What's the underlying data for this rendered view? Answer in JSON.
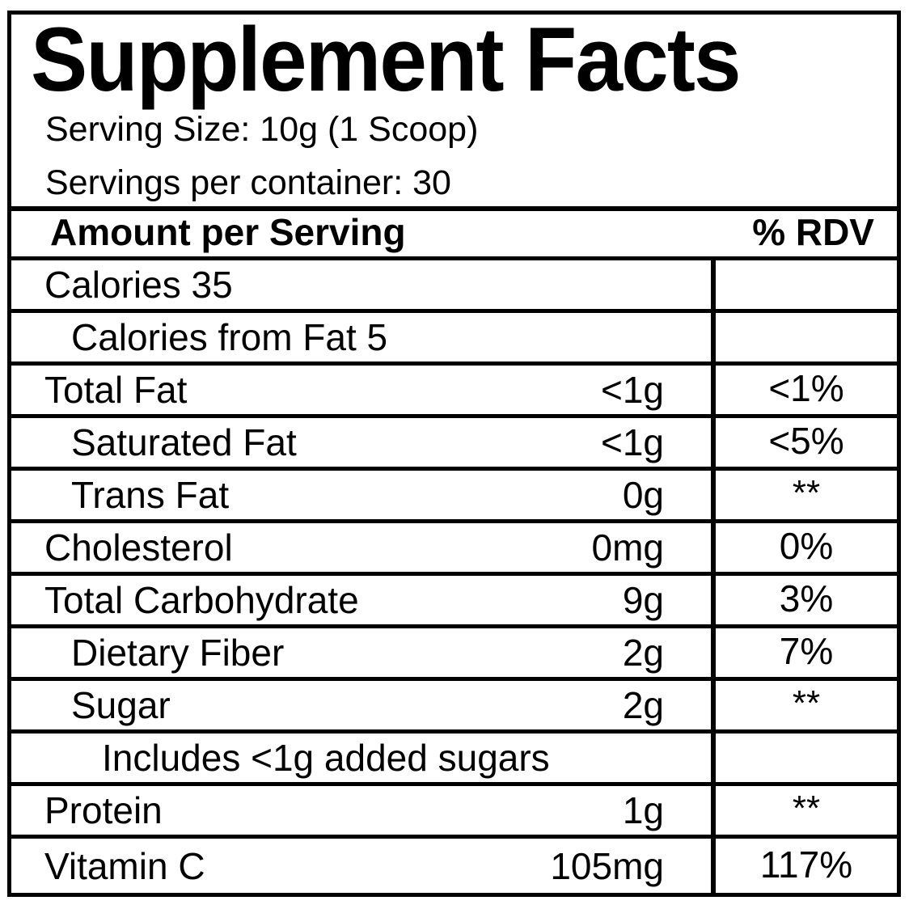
{
  "label": {
    "title": "Supplement Facts",
    "serving_size": "Serving Size: 10g (1 Scoop)",
    "servings_per_container": "Servings per container: 30",
    "colors": {
      "text": "#000000",
      "background": "#ffffff",
      "border": "#000000"
    }
  },
  "table": {
    "header": {
      "amount": "Amount per Serving",
      "rdv": "% RDV"
    },
    "rows": [
      {
        "name": "Calories 35",
        "amount": "",
        "rdv": "",
        "indent": 0
      },
      {
        "name": "Calories from Fat 5",
        "amount": "",
        "rdv": "",
        "indent": 1
      },
      {
        "name": "Total Fat",
        "amount": "<1g",
        "rdv": "<1%",
        "indent": 0
      },
      {
        "name": "Saturated Fat",
        "amount": "<1g",
        "rdv": "<5%",
        "indent": 1
      },
      {
        "name": "Trans Fat",
        "amount": "0g",
        "rdv": "**",
        "indent": 1
      },
      {
        "name": "Cholesterol",
        "amount": "0mg",
        "rdv": "0%",
        "indent": 0
      },
      {
        "name": "Total Carbohydrate",
        "amount": "9g",
        "rdv": "3%",
        "indent": 0
      },
      {
        "name": "Dietary Fiber",
        "amount": "2g",
        "rdv": "7%",
        "indent": 1
      },
      {
        "name": "Sugar",
        "amount": "2g",
        "rdv": "**",
        "indent": 1
      },
      {
        "name": "Includes <1g added sugars",
        "amount": "",
        "rdv": "",
        "indent": 2
      },
      {
        "name": "Protein",
        "amount": "1g",
        "rdv": "**",
        "indent": 0
      },
      {
        "name": "Vitamin C",
        "amount": "105mg",
        "rdv": "117%",
        "indent": 0
      }
    ]
  }
}
